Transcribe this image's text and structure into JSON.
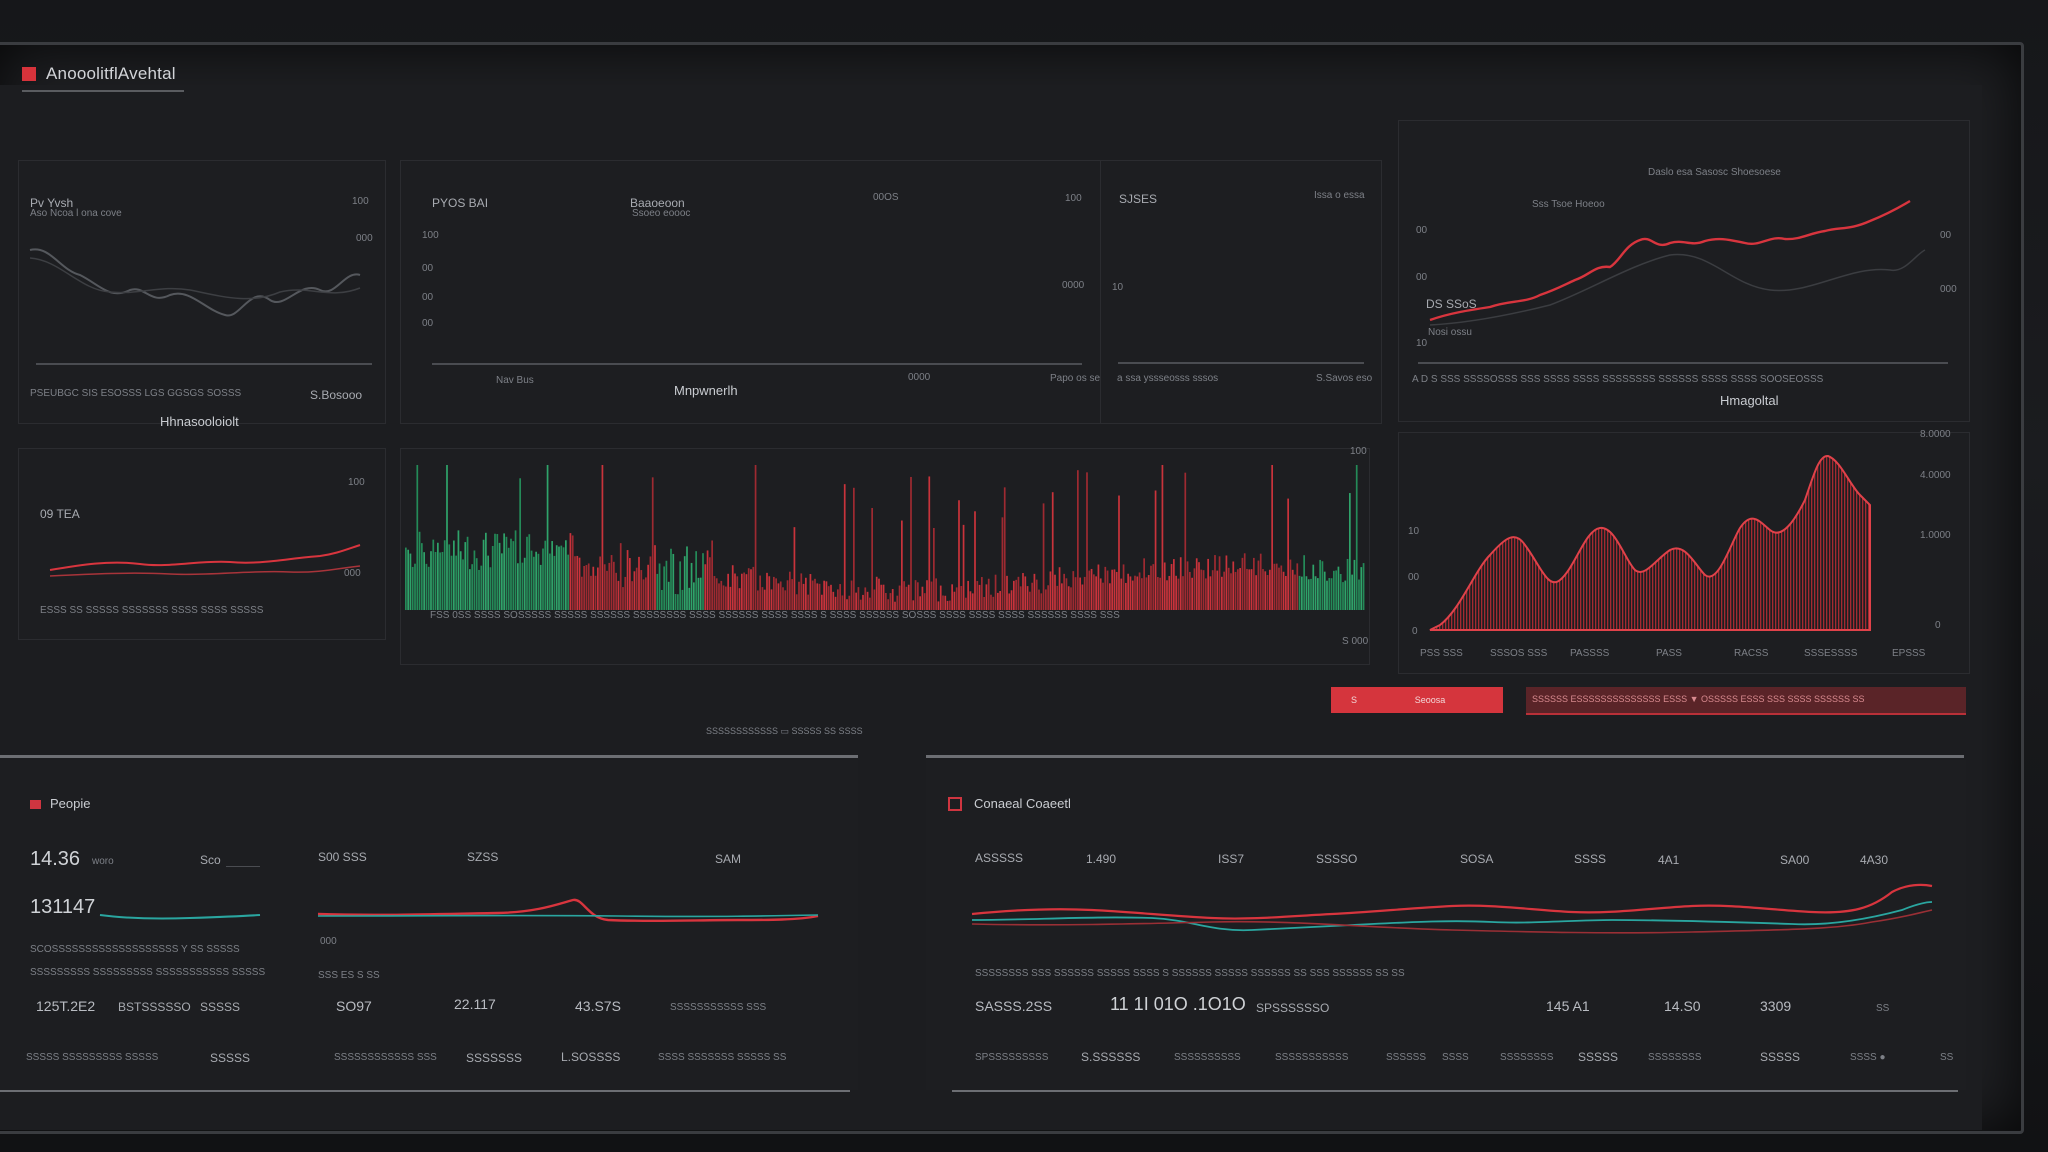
{
  "app": {
    "title": "AnooolitflAvehtal"
  },
  "panels": {
    "p1": {
      "title": "Pv Yvsh",
      "subtitle": "Aso Ncoa l ona cove",
      "tick_top": "100",
      "tick_right": "000",
      "footer": "PSEUBGC SIS  ESOSSS  LGS GGSGS SOSSS",
      "footer_right": "S.Bosooo"
    },
    "p2": {
      "title_left": "PYOS BAI",
      "title_center": "Baaoeoon",
      "subtitle": "Ssoeo eoooc",
      "tick1": "00OS",
      "tick2": "100",
      "ylab": [
        "100",
        "00",
        "00",
        "00"
      ],
      "right_lbl": "0000",
      "footer": "Nav Bus",
      "footer2": "0000",
      "footer3": "Papo os se oraeo"
    },
    "p3": {
      "title": "SJSES",
      "title_right": "Issa o essa",
      "ylab": "10",
      "footer": "a ssa yssseosss sssos",
      "footer_right": "S.Savos eso"
    },
    "p4": {
      "legend": "Daslo esa  Sasosc  Shoesoese",
      "label1": "Sss Tsoe Hoeoo",
      "label2": "DS SSoS",
      "label3": "Nosi ossu",
      "ylab": [
        "00",
        "00",
        "10"
      ],
      "rlab": [
        "00",
        "000"
      ],
      "footer": "A D S SSS SSSSOSSS SSS  SSSS SSSS  SSSSSSSS  SSSSSS  SSSS SSSS SOOSEOSSS"
    },
    "p5": {
      "title": "Hhnasooloiolt",
      "label": "09 TEA",
      "tick": "100",
      "tick2": "000",
      "footer": "ESSS  SS SSSSS  SSSSSSS  SSSS SSSS  SSSSS"
    },
    "p6": {
      "title": "Mnpwnerlh",
      "tick_top": "100",
      "footer": "FSS 0SS SSSS  SOSSSSS SSSSS  SSSSSS SSSSSSSS  SSSS  SSSSSS SSSS  SSSS S  SSSS  SSSSSS  SOSSS SSSS  SSSS SSSS  SSSSSS  SSSS SSS",
      "footer_r": "S 000"
    },
    "p7": {
      "title": "Hmagoltal",
      "rlab": [
        "8.0000",
        "4.0000",
        "1.0000",
        "0"
      ],
      "ylab": [
        "10",
        "00",
        "0"
      ],
      "xlab": [
        "PSS SSS",
        "SSSOS SSS",
        "PASSSS",
        "PASS",
        "RACSS",
        "SSSESSSS",
        "EPSSS"
      ]
    },
    "status": {
      "btn_tag": "S",
      "btn_label": "Seoosa",
      "strip": "SSSSSS         ESSSSSSSSSSSSSS    ESSS  ▼  OSSSSS ESSS SSS SSSS SSSSSS SS",
      "mid_caption": "SSSSSSSSSSSS  ▭  SSSSS SS SSSS"
    }
  },
  "people": {
    "title": "Peopie",
    "v1": "14.36",
    "v1_unit": "woro",
    "v1_r": "Sco",
    "v2": "131147",
    "desc": "SCOSSSSSSSSSSSSSSSSSSS Y SS SSSSS",
    "desc2": "SSSSSSSSS SSSSSSSSS SSSSSSSSSSS SSSSS",
    "col_a": "S00 SSS",
    "col_b": "SZSS",
    "col_c": "SAM",
    "axis": "  SSS                                                          ES              S              SS",
    "row1": [
      "125T.2E2",
      "BSTSSSSSO",
      "SSSSS",
      "SO97",
      "22.117",
      "43.S7S",
      "SSSSSSSSSSS SSS"
    ],
    "row2": [
      "SSSSS SSSSSSSSS SSSSS",
      "SSSSS",
      "SSSSSSSSSSSS SSS",
      "SSSSSSS",
      "L.SOSSSS",
      "SSSS SSSSSSS SSSSS SS"
    ],
    "small": "000"
  },
  "conn": {
    "title": "Conaeal Coaeetl",
    "header": [
      "ASSSSS",
      "1.490",
      "ISS7",
      "SSSSO",
      "SOSA",
      "SSSS",
      "4A1",
      "SA00",
      "4A30"
    ],
    "axis": "SSSSSSSS            SSS SSSSSS SSSSS   SSSS   S SSSSSS SSSSS                     SSSSSS SS                  SSS SSSSSS                                    SS                      SS",
    "row1": [
      "SASSS.2SS",
      "11 1I 01O .1O1O",
      "SPSSSSSSO",
      "145 A1",
      "14.S0",
      "3309",
      "SS"
    ],
    "row2": [
      "SPSSSSSSSSS",
      "S.SSSSSS",
      "SSSSSSSSSS",
      "SSSSSSSSSSS",
      "SSSSSS",
      "SSSS",
      "SSSSSSSS",
      "SSSSS",
      "SSSSSSSS",
      "SSSSS",
      "SSSS ●",
      "SS"
    ]
  },
  "colors": {
    "accent": "#d5353d",
    "green": "#2fa36a",
    "teal": "#2aa6a0",
    "bg": "#1c1d20"
  }
}
